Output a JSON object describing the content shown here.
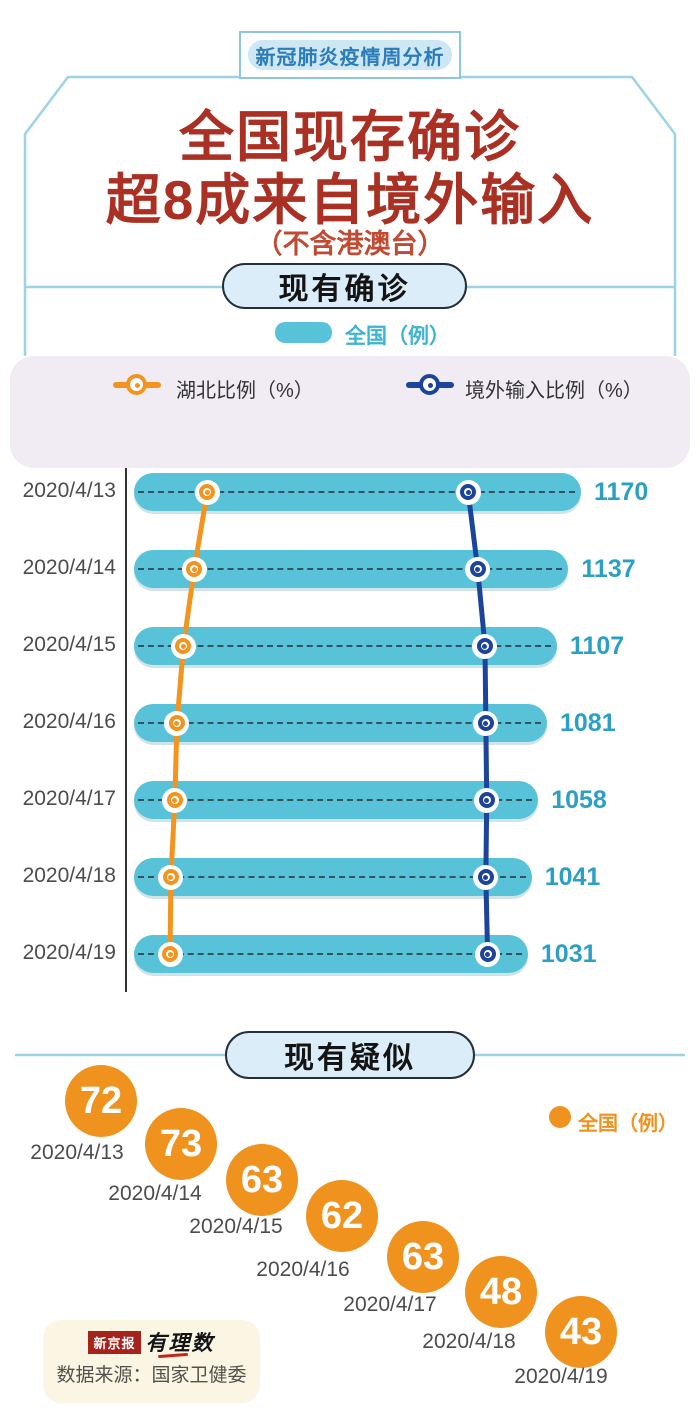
{
  "badge": {
    "label": "新冠肺炎疫情周分析"
  },
  "title": {
    "line1": "全国现存确诊",
    "line2": "超8成来自境外输入",
    "note": "（不含港澳台）"
  },
  "sections": {
    "confirmed": {
      "title": "现有确诊",
      "legend_national": "全国（例）",
      "legend_hubei": "湖北比例（%）",
      "legend_imported": "境外输入比例（%）"
    },
    "suspected": {
      "title": "现有疑似",
      "legend_national": "全国（例）"
    }
  },
  "footer": {
    "logo_paper": "新京报",
    "logo_column": "有理数",
    "source": "数据来源：国家卫健委"
  },
  "colors": {
    "bar_cyan": "#58c3d8",
    "value_teal": "#2b9fc4",
    "hubei_orange": "#f3941e",
    "imported_blue": "#1c449c",
    "suspected_orange": "#f0921e",
    "title_red": "#a93023",
    "note_red": "#c14a33",
    "badge_blue": "#2b7cb9",
    "panel_lavender": "#f1ecf4",
    "frame_blue": "#9ed2e6"
  },
  "chart_data": [
    {
      "type": "bar",
      "title": "现有确诊",
      "orientation": "horizontal",
      "categories": [
        "2020/4/13",
        "2020/4/14",
        "2020/4/15",
        "2020/4/16",
        "2020/4/17",
        "2020/4/18",
        "2020/4/19"
      ],
      "series": [
        {
          "name": "全国（例）",
          "values": [
            1170,
            1137,
            1107,
            1081,
            1058,
            1041,
            1031
          ]
        },
        {
          "name": "湖北比例（%）",
          "values": [
            18.8,
            15.8,
            13.3,
            11.8,
            11.3,
            10.4,
            10.2
          ]
        },
        {
          "name": "境外输入比例（%）",
          "values": [
            79.2,
            81.4,
            83.1,
            83.3,
            83.5,
            83.3,
            83.7
          ]
        }
      ],
      "axis": {
        "ticks": [
          0,
          20,
          40,
          60,
          80,
          100
        ],
        "unit": "%",
        "range": [
          0,
          100
        ],
        "grid": false,
        "legend_position": "top"
      }
    },
    {
      "type": "bubble",
      "title": "现有疑似",
      "categories": [
        "2020/4/13",
        "2020/4/14",
        "2020/4/15",
        "2020/4/16",
        "2020/4/17",
        "2020/4/18",
        "2020/4/19"
      ],
      "values": [
        72,
        73,
        63,
        62,
        63,
        48,
        43
      ]
    }
  ]
}
